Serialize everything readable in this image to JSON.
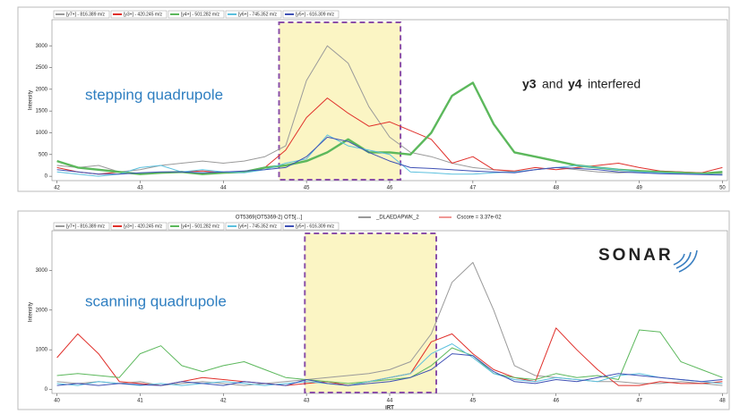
{
  "chart_data": [
    {
      "type": "line",
      "y_label": "Intensity",
      "annotations": [
        "stepping quadrupole",
        "y3",
        "and",
        "y4",
        "interfered"
      ],
      "annotation_colors": [
        "#2f7fc1",
        "#e0302b",
        "#222222",
        "#4aa84a",
        "#222222"
      ],
      "xlim": [
        41.94,
        50.06
      ],
      "ylim": [
        -100,
        3600
      ],
      "xticks": [
        42,
        43,
        44,
        45,
        46,
        47,
        48,
        49,
        50
      ],
      "yticks": [
        0,
        500,
        1000,
        1500,
        2000,
        2500,
        3000
      ],
      "highlight": [
        44.67,
        46.13
      ],
      "x": [
        42,
        42.25,
        42.5,
        42.75,
        43,
        43.25,
        43.5,
        43.75,
        44,
        44.25,
        44.5,
        44.75,
        45,
        45.25,
        45.5,
        45.75,
        46,
        46.25,
        46.5,
        46.75,
        47,
        47.25,
        47.5,
        47.75,
        48,
        48.25,
        48.5,
        48.75,
        49,
        49.25,
        49.5,
        49.75,
        50
      ],
      "series": [
        {
          "name": "[y7+] - 816.389 m/z",
          "color": "#9a9a9a",
          "values": [
            250,
            200,
            250,
            100,
            150,
            250,
            300,
            350,
            300,
            350,
            450,
            700,
            2200,
            3000,
            2600,
            1600,
            900,
            550,
            450,
            300,
            200,
            150,
            100,
            150,
            200,
            150,
            100,
            80,
            100,
            120,
            100,
            80,
            60
          ]
        },
        {
          "name": "[y3+] - 420.245 m/z",
          "color": "#e0302b",
          "values": [
            200,
            100,
            50,
            100,
            50,
            80,
            100,
            120,
            80,
            100,
            200,
            600,
            1350,
            1800,
            1450,
            1150,
            1250,
            1050,
            850,
            300,
            450,
            150,
            120,
            200,
            150,
            200,
            250,
            300,
            200,
            120,
            100,
            80,
            200
          ]
        },
        {
          "name": "[y4+] - 501.282 m/z",
          "color": "#5cb85c",
          "bold": true,
          "values": [
            350,
            200,
            150,
            100,
            50,
            80,
            100,
            50,
            80,
            100,
            200,
            250,
            350,
            550,
            850,
            550,
            550,
            500,
            1000,
            1850,
            2150,
            1200,
            550,
            450,
            350,
            250,
            200,
            150,
            120,
            100,
            80,
            60,
            100
          ]
        },
        {
          "name": "[y6+] - 745.352 m/z",
          "color": "#5bc0de",
          "values": [
            100,
            50,
            0,
            50,
            200,
            250,
            100,
            150,
            100,
            80,
            150,
            300,
            400,
            950,
            700,
            600,
            500,
            100,
            80,
            50,
            50,
            80,
            100,
            150,
            200,
            250,
            200,
            150,
            100,
            80,
            60,
            50,
            40
          ]
        },
        {
          "name": "[y5+] - 616.309 m/z",
          "color": "#3f51b5",
          "values": [
            150,
            100,
            50,
            50,
            80,
            100,
            100,
            80,
            100,
            120,
            150,
            200,
            450,
            900,
            800,
            550,
            350,
            200,
            180,
            150,
            120,
            100,
            80,
            150,
            200,
            180,
            150,
            100,
            80,
            60,
            50,
            40,
            30
          ]
        }
      ]
    },
    {
      "type": "line",
      "header": [
        "OT5369(OT5369-2) OT5[...]",
        "_DLAEDAPWK_2",
        "Cscore = 3.37e-02"
      ],
      "y_label": "Intensity",
      "x_label": "iRT",
      "annotations": [
        "scanning quadrupole",
        "SONAR"
      ],
      "annotation_colors": [
        "#2f7fc1",
        "#222222"
      ],
      "xlim": [
        39.94,
        48.06
      ],
      "ylim": [
        -100,
        4000
      ],
      "xticks": [
        40,
        41,
        42,
        43,
        44,
        45,
        46,
        47,
        48
      ],
      "yticks": [
        0,
        1000,
        2000,
        3000
      ],
      "highlight": [
        42.98,
        44.56
      ],
      "x": [
        40,
        40.25,
        40.5,
        40.75,
        41,
        41.25,
        41.5,
        41.75,
        42,
        42.25,
        42.5,
        42.75,
        43,
        43.25,
        43.5,
        43.75,
        44,
        44.25,
        44.5,
        44.75,
        45,
        45.25,
        45.5,
        45.75,
        46,
        46.25,
        46.5,
        46.75,
        47,
        47.25,
        47.5,
        47.75,
        48
      ],
      "series": [
        {
          "name": "[y7+] - 816.389 m/z",
          "color": "#9a9a9a",
          "values": [
            200,
            150,
            200,
            150,
            200,
            100,
            150,
            200,
            150,
            100,
            150,
            200,
            250,
            300,
            350,
            400,
            500,
            700,
            1400,
            2700,
            3200,
            2000,
            600,
            350,
            300,
            250,
            200,
            200,
            150,
            150,
            200,
            150,
            100
          ]
        },
        {
          "name": "[y3+] - 420.245 m/z",
          "color": "#e0302b",
          "values": [
            800,
            1400,
            900,
            200,
            150,
            100,
            200,
            300,
            250,
            200,
            150,
            100,
            150,
            200,
            100,
            200,
            300,
            400,
            1200,
            1400,
            900,
            500,
            300,
            200,
            1550,
            1000,
            500,
            100,
            100,
            200,
            150,
            150,
            200
          ]
        },
        {
          "name": "[y4+] - 501.282 m/z",
          "color": "#5cb85c",
          "values": [
            350,
            400,
            350,
            300,
            900,
            1100,
            600,
            450,
            600,
            700,
            500,
            300,
            250,
            200,
            150,
            200,
            250,
            300,
            600,
            1050,
            850,
            400,
            300,
            250,
            400,
            300,
            350,
            250,
            1500,
            1450,
            700,
            500,
            300
          ]
        },
        {
          "name": "[y6+] - 745.352 m/z",
          "color": "#5bc0de",
          "values": [
            150,
            100,
            200,
            150,
            100,
            150,
            100,
            150,
            200,
            150,
            100,
            150,
            200,
            150,
            100,
            200,
            300,
            400,
            900,
            1150,
            800,
            400,
            250,
            200,
            300,
            250,
            200,
            350,
            400,
            300,
            250,
            200,
            150
          ]
        },
        {
          "name": "[y5+] - 616.309 m/z",
          "color": "#3f51b5",
          "values": [
            100,
            150,
            100,
            150,
            120,
            100,
            200,
            150,
            100,
            200,
            150,
            100,
            250,
            150,
            100,
            150,
            200,
            300,
            500,
            900,
            850,
            450,
            200,
            150,
            250,
            200,
            300,
            400,
            350,
            300,
            250,
            200,
            250
          ]
        }
      ]
    }
  ]
}
